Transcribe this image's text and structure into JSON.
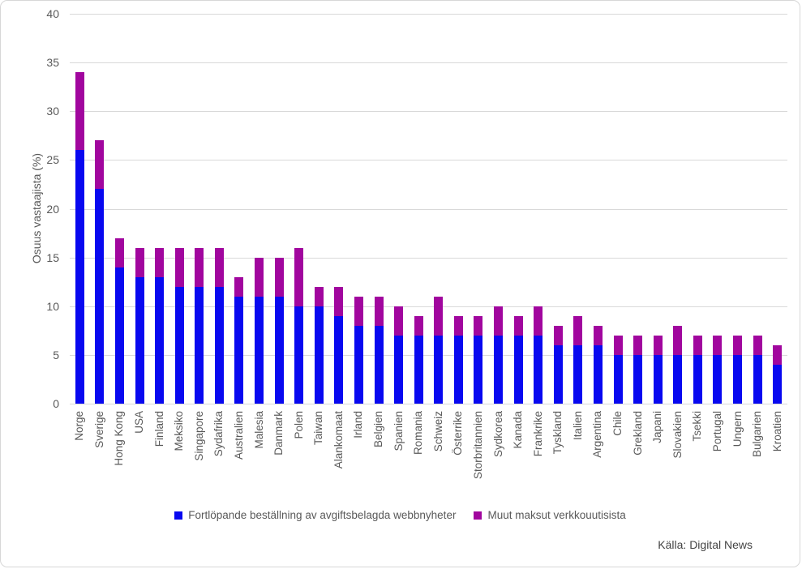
{
  "chart_data": {
    "type": "bar",
    "stacked": true,
    "title": "",
    "ylabel": "Osuus vastaajista (%)",
    "xlabel": "",
    "ylim": [
      0,
      40
    ],
    "yticks": [
      0,
      5,
      10,
      15,
      20,
      25,
      30,
      35,
      40
    ],
    "grid": "horizontal",
    "legend_position": "bottom",
    "categories": [
      "Norge",
      "Sverige",
      "Hong Kong",
      "USA",
      "Finland",
      "Meksiko",
      "Singapore",
      "Sydafrika",
      "Australien",
      "Malesia",
      "Danmark",
      "Polen",
      "Taiwan",
      "Alankomaat",
      "Irland",
      "Belgien",
      "Spanien",
      "Romania",
      "Schweiz",
      "Österrike",
      "Storbritannien",
      "Sydkorea",
      "Kanada",
      "Frankrike",
      "Tyskland",
      "Italien",
      "Argentina",
      "Chile",
      "Grekland",
      "Japani",
      "Slovakien",
      "Tsekki",
      "Portugal",
      "Ungern",
      "Bulgarien",
      "Kroatien"
    ],
    "series": [
      {
        "name": "Fortlöpande beställning av avgiftsbelagda webbnyheter",
        "color": "#0808f0",
        "values": [
          26,
          22,
          14,
          13,
          13,
          12,
          12,
          12,
          11,
          11,
          11,
          10,
          10,
          9,
          8,
          8,
          7,
          7,
          7,
          7,
          7,
          7,
          7,
          7,
          6,
          6,
          6,
          5,
          5,
          5,
          5,
          5,
          5,
          5,
          5,
          4
        ]
      },
      {
        "name": "Muut maksut verkkouutisista",
        "color": "#a1069e",
        "values": [
          8,
          5,
          3,
          3,
          3,
          4,
          4,
          4,
          2,
          4,
          4,
          6,
          2,
          3,
          3,
          3,
          3,
          2,
          4,
          2,
          2,
          3,
          2,
          3,
          2,
          3,
          2,
          2,
          2,
          2,
          3,
          2,
          2,
          2,
          2,
          2
        ]
      }
    ],
    "totals": [
      34,
      27,
      17,
      16,
      16,
      16,
      16,
      16,
      13,
      15,
      15,
      16,
      12,
      12,
      11,
      11,
      10,
      9,
      11,
      9,
      9,
      10,
      9,
      10,
      8,
      9,
      8,
      7,
      7,
      7,
      8,
      7,
      7,
      7,
      7,
      6
    ]
  },
  "source_note": "Källa: Digital News",
  "colors": {
    "grid": "#d9d9d9",
    "axis_text": "#595959",
    "series1": "#0808f0",
    "series2": "#a1069e"
  }
}
